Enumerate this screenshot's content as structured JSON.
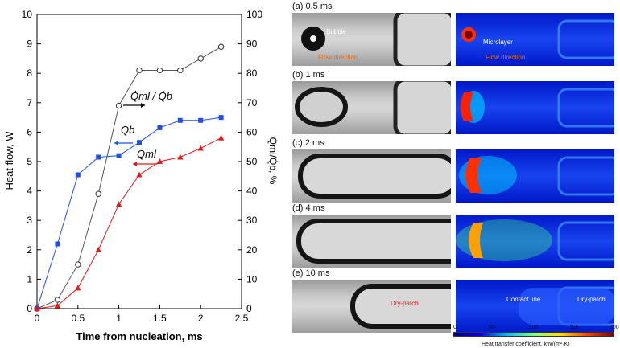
{
  "chart_data": {
    "type": "line",
    "title": "",
    "xlabel": "Time from nucleation, ms",
    "ylabel_left": "Heat flow, W",
    "ylabel_right": "Q̇ml/Q̇b, %",
    "xlim": [
      0,
      2.5
    ],
    "ylim_left": [
      0,
      10
    ],
    "ylim_right": [
      0,
      100
    ],
    "xticks": [
      "0",
      "0.5",
      "1",
      "1.5",
      "2",
      "2.5"
    ],
    "yticks_left": [
      "0",
      "1",
      "2",
      "3",
      "4",
      "5",
      "6",
      "7",
      "8",
      "9",
      "10"
    ],
    "yticks_right": [
      "0",
      "10",
      "20",
      "30",
      "40",
      "50",
      "60",
      "70",
      "80",
      "90",
      "100"
    ],
    "grid": false,
    "series": [
      {
        "name": "Q̇ml / Q̇b",
        "axis": "right",
        "color": "#555555",
        "marker": "open-circle",
        "x": [
          0,
          0.25,
          0.5,
          0.75,
          1.0,
          1.25,
          1.5,
          1.75,
          2.0,
          2.25
        ],
        "y": [
          0,
          3,
          15,
          39,
          69,
          81,
          81,
          81,
          85,
          89
        ]
      },
      {
        "name": "Q̇b",
        "axis": "left",
        "color": "#1f4fe0",
        "marker": "square",
        "x": [
          0,
          0.25,
          0.5,
          0.75,
          1.0,
          1.25,
          1.5,
          1.75,
          2.0,
          2.25
        ],
        "y": [
          0,
          2.2,
          4.55,
          5.15,
          5.2,
          5.65,
          6.15,
          6.4,
          6.4,
          6.5
        ]
      },
      {
        "name": "Q̇ml",
        "axis": "left",
        "color": "#e01919",
        "marker": "triangle",
        "x": [
          0,
          0.25,
          0.5,
          0.75,
          1.0,
          1.25,
          1.5,
          1.75,
          2.0,
          2.25
        ],
        "y": [
          0,
          0.1,
          0.7,
          2.0,
          3.55,
          4.55,
          5.0,
          5.15,
          5.45,
          5.8
        ]
      }
    ]
  },
  "panels": {
    "a": {
      "label": "(a) 0.5 ms",
      "bubble_label": "Bubble",
      "microlayer_label": "Microlayer",
      "flow_label_left": "Flow direction",
      "flow_label_right": "Flow direction"
    },
    "b": {
      "label": "(b) 1 ms"
    },
    "c": {
      "label": "(c) 2 ms"
    },
    "d": {
      "label": "(d) 4 ms"
    },
    "e": {
      "label": "(e) 10 ms",
      "dry_patch_left": "Dry-patch",
      "contact_line": "Contact line",
      "dry_patch_right": "Dry-patch"
    }
  },
  "colorbar": {
    "ticks": [
      "0",
      "50",
      "100",
      "150",
      "200"
    ],
    "label": "Heat transfer coefficient, kW/(m²·K)",
    "colors": [
      "#00007f",
      "#0000ff",
      "#00bfff",
      "#7fff7f",
      "#ffdf00",
      "#ff3f00",
      "#7f0000"
    ]
  }
}
